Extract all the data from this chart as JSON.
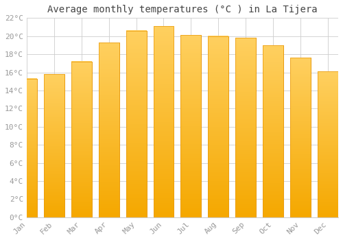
{
  "title": "Average monthly temperatures (°C ) in La Tijera",
  "months": [
    "Jan",
    "Feb",
    "Mar",
    "Apr",
    "May",
    "Jun",
    "Jul",
    "Aug",
    "Sep",
    "Oct",
    "Nov",
    "Dec"
  ],
  "values": [
    15.3,
    15.8,
    17.2,
    19.3,
    20.6,
    21.1,
    20.1,
    20.0,
    19.8,
    19.0,
    17.6,
    16.1
  ],
  "bar_color_top": "#FFC333",
  "bar_color_bottom": "#F5A800",
  "bar_edge_color": "#E8980A",
  "ylim": [
    0,
    22
  ],
  "yticks": [
    0,
    2,
    4,
    6,
    8,
    10,
    12,
    14,
    16,
    18,
    20,
    22
  ],
  "ytick_labels": [
    "0°C",
    "2°C",
    "4°C",
    "6°C",
    "8°C",
    "10°C",
    "12°C",
    "14°C",
    "16°C",
    "18°C",
    "20°C",
    "22°C"
  ],
  "grid_color": "#cccccc",
  "background_color": "#ffffff",
  "title_fontsize": 10,
  "tick_fontsize": 8,
  "tick_color": "#999999",
  "font_family": "monospace",
  "bar_width": 0.75
}
